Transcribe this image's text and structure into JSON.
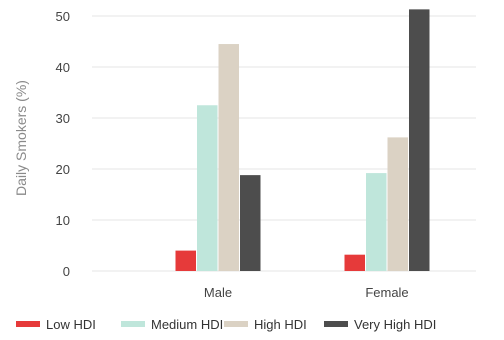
{
  "chart_data": {
    "type": "bar",
    "title": "",
    "xlabel": "",
    "ylabel": "Daily Smokers (%)",
    "categories": [
      "Male",
      "Female"
    ],
    "series": [
      {
        "name": "Low HDI",
        "values": [
          4.0,
          3.2
        ],
        "color": "#e63a3a"
      },
      {
        "name": "Medium HDI",
        "values": [
          32.5,
          19.2
        ],
        "color": "#bfe6db"
      },
      {
        "name": "High HDI",
        "values": [
          44.5,
          26.2
        ],
        "color": "#dbd2c4"
      },
      {
        "name": "Very High HDI",
        "values": [
          18.8,
          51.3
        ],
        "color": "#4d4d4d"
      }
    ],
    "ylim": [
      0,
      52
    ],
    "yticks": [
      0,
      10,
      20,
      30,
      40,
      50
    ],
    "grid": true,
    "legend_position": "bottom"
  }
}
